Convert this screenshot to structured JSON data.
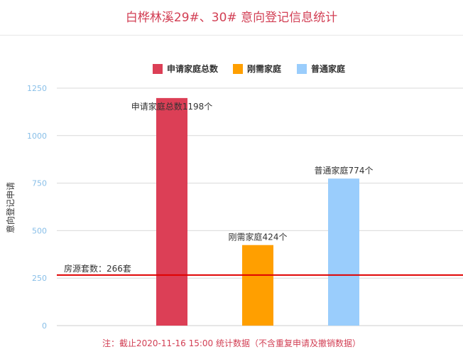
{
  "title": "白桦林溪29#、30# 意向登记信息统计",
  "note": "注：截止2020-11-16 15:00 统计数据（不含重复申请及撤销数据）",
  "colors": {
    "series": [
      "#dc3f56",
      "#ff9f00",
      "#9acdfc"
    ],
    "reference_line": "#e00000",
    "grid": "#d9d9d9",
    "tick": "#88bfe8",
    "text": "#333333",
    "accent": "#d23f54"
  },
  "chart_data": {
    "type": "bar",
    "categories": [
      "申请家庭总数",
      "刚需家庭",
      "普通家庭"
    ],
    "values": [
      1198,
      424,
      774
    ],
    "data_labels": [
      "申请家庭总数1198个",
      "刚需家庭424个",
      "普通家庭774个"
    ],
    "legend": [
      "申请家庭总数",
      "刚需家庭",
      "普通家庭"
    ],
    "legend_position": "top-center",
    "ylabel": "意向登记申请",
    "xlabel": "",
    "ylim": [
      0,
      1250
    ],
    "yticks": [
      "0",
      "250",
      "500",
      "750",
      "1000",
      "1250"
    ],
    "grid": true,
    "reference_line": {
      "value": 266,
      "label": "房源套数：266套"
    }
  }
}
